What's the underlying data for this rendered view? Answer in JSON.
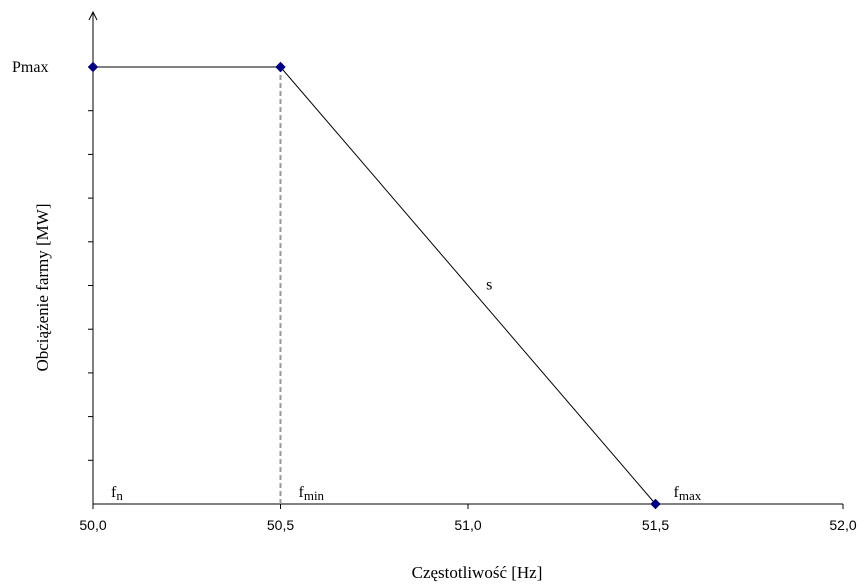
{
  "chart_data": {
    "type": "line",
    "xlabel": "Częstotliwość [Hz]",
    "ylabel": "Obciążenie farmy [MW]",
    "x_ticks": [
      "50,0",
      "50,5",
      "51,0",
      "51,5",
      "52,0"
    ],
    "xlim": [
      50.0,
      52.0
    ],
    "ylim": [
      0,
      1
    ],
    "y_tick_count": 10,
    "grid": false,
    "y_axis_label_max": "Pmax",
    "series": [
      {
        "points": [
          {
            "x": 50.0,
            "y": 1
          },
          {
            "x": 50.5,
            "y": 1
          },
          {
            "x": 51.5,
            "y": 0
          }
        ],
        "line_color": "#000000",
        "marker_color": "#000080"
      }
    ],
    "reference_lines": [
      {
        "x": 50.5,
        "from_y": 0,
        "to_y": 1,
        "style": "dashed",
        "color": "#999999"
      }
    ],
    "point_labels": [
      {
        "main": "f",
        "sub": "n",
        "x": 50.0
      },
      {
        "main": "f",
        "sub": "min",
        "x": 50.5
      },
      {
        "main": "f",
        "sub": "max",
        "x": 51.5
      }
    ],
    "line_annotation": {
      "text": "s",
      "x": 51.03,
      "y": 0.5
    }
  }
}
